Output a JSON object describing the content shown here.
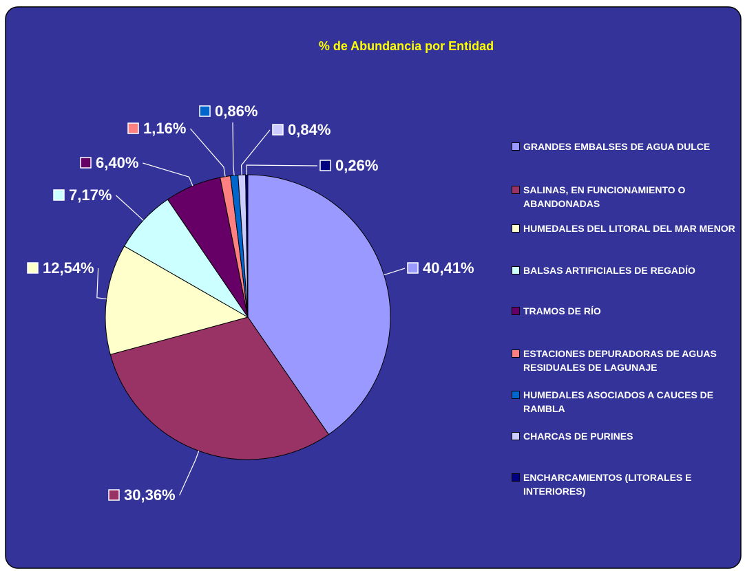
{
  "chart_data": {
    "type": "pie",
    "title": "% de Abundancia por Entidad",
    "categories": [
      "GRANDES EMBALSES DE AGUA DULCE",
      "SALINAS, EN FUNCIONAMIENTO O ABANDONADAS",
      "HUMEDALES DEL LITORAL DEL MAR MENOR",
      "BALSAS ARTIFICIALES DE REGADÍO",
      "TRAMOS DE RÍO",
      "ESTACIONES DEPURADORAS DE AGUAS RESIDUALES DE LAGUNAJE",
      "HUMEDALES ASOCIADOS A CAUCES DE RAMBLA",
      "CHARCAS DE PURINES",
      "ENCHARCAMIENTOS (LITORALES E INTERIORES)"
    ],
    "values": [
      40.41,
      30.36,
      12.54,
      7.17,
      6.4,
      1.16,
      0.86,
      0.84,
      0.26
    ],
    "value_labels": [
      "40,41%",
      "30,36%",
      "12,54%",
      "7,17%",
      "6,40%",
      "1,16%",
      "0,86%",
      "0,84%",
      "0,26%"
    ],
    "colors": [
      "#9999ff",
      "#993366",
      "#ffffcc",
      "#ccffff",
      "#660066",
      "#ff8080",
      "#0066cc",
      "#ccccff",
      "#000080"
    ],
    "legend": "right"
  }
}
